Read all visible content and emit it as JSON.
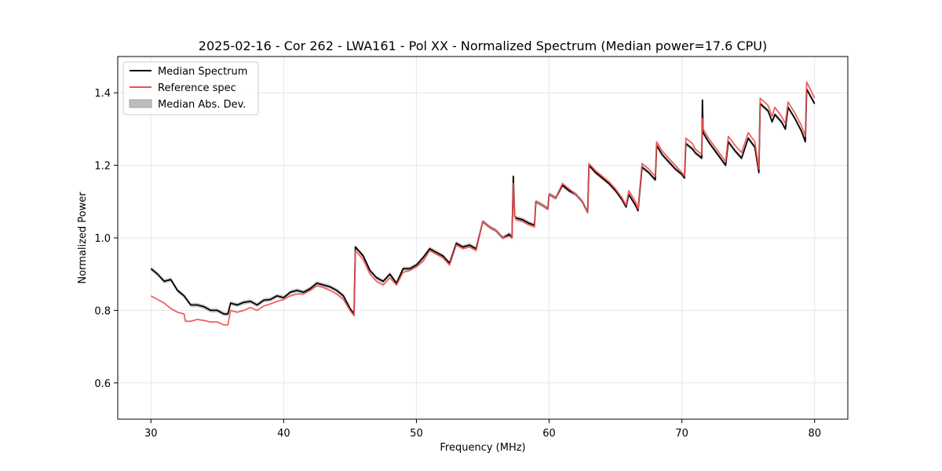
{
  "chart_data": {
    "type": "line",
    "title": "2025-02-16 - Cor 262 - LWA161 - Pol XX - Normalized Spectrum (Median power=17.6 CPU)",
    "xlabel": "Frequency (MHz)",
    "ylabel": "Normalized Power",
    "xlim": [
      27.5,
      82.5
    ],
    "ylim": [
      0.5,
      1.5
    ],
    "xticks": [
      30,
      40,
      50,
      60,
      70,
      80
    ],
    "yticks": [
      0.6,
      0.8,
      1.0,
      1.2,
      1.4
    ],
    "grid": true,
    "legend_position": "top-left",
    "legend": [
      "Median Spectrum",
      "Reference spec",
      "Median Abs. Dev."
    ],
    "colors": {
      "median": "#000000",
      "reference": "#f05050",
      "mad_band": "#bdbdbd"
    },
    "mad_width": 0.006,
    "series": [
      {
        "name": "Median Spectrum",
        "x": [
          30.0,
          30.5,
          31.0,
          31.5,
          32.0,
          32.5,
          33.0,
          33.5,
          34.0,
          34.5,
          35.0,
          35.5,
          35.8,
          36.0,
          36.5,
          37.0,
          37.5,
          38.0,
          38.5,
          39.0,
          39.5,
          40.0,
          40.5,
          41.0,
          41.5,
          42.0,
          42.5,
          43.0,
          43.5,
          44.0,
          44.5,
          45.0,
          45.3,
          45.4,
          46.0,
          46.5,
          47.0,
          47.5,
          48.0,
          48.5,
          49.0,
          49.5,
          50.0,
          50.5,
          51.0,
          51.5,
          52.0,
          52.5,
          53.0,
          53.5,
          54.0,
          54.5,
          55.0,
          55.5,
          56.0,
          56.5,
          57.0,
          57.2,
          57.3,
          57.4,
          57.5,
          58.0,
          58.5,
          58.9,
          59.0,
          59.5,
          59.9,
          60.0,
          60.5,
          61.0,
          61.5,
          62.0,
          62.5,
          62.9,
          63.0,
          63.5,
          64.0,
          64.5,
          65.0,
          65.5,
          65.8,
          66.0,
          66.5,
          66.7,
          67.0,
          67.5,
          68.0,
          68.1,
          68.5,
          69.0,
          69.5,
          70.0,
          70.2,
          70.3,
          70.8,
          71.0,
          71.5,
          71.55,
          71.6,
          72.0,
          72.5,
          73.0,
          73.3,
          73.5,
          74.0,
          74.5,
          75.0,
          75.5,
          75.8,
          75.9,
          76.5,
          76.8,
          77.0,
          77.5,
          77.8,
          78.0,
          78.5,
          79.0,
          79.3,
          79.4,
          80.0
        ],
        "values": [
          0.915,
          0.9,
          0.88,
          0.885,
          0.855,
          0.84,
          0.815,
          0.815,
          0.81,
          0.8,
          0.8,
          0.79,
          0.79,
          0.82,
          0.815,
          0.822,
          0.825,
          0.815,
          0.828,
          0.83,
          0.84,
          0.835,
          0.85,
          0.855,
          0.85,
          0.86,
          0.875,
          0.87,
          0.865,
          0.855,
          0.84,
          0.805,
          0.79,
          0.975,
          0.95,
          0.91,
          0.89,
          0.88,
          0.9,
          0.875,
          0.915,
          0.915,
          0.925,
          0.945,
          0.97,
          0.96,
          0.95,
          0.93,
          0.985,
          0.975,
          0.98,
          0.97,
          1.045,
          1.03,
          1.02,
          1.0,
          1.01,
          1.0,
          1.17,
          1.06,
          1.055,
          1.05,
          1.04,
          1.035,
          1.1,
          1.09,
          1.08,
          1.12,
          1.11,
          1.145,
          1.13,
          1.12,
          1.1,
          1.07,
          1.2,
          1.18,
          1.165,
          1.15,
          1.13,
          1.105,
          1.085,
          1.12,
          1.09,
          1.075,
          1.195,
          1.18,
          1.16,
          1.255,
          1.23,
          1.21,
          1.19,
          1.175,
          1.165,
          1.26,
          1.245,
          1.235,
          1.22,
          1.38,
          1.29,
          1.265,
          1.24,
          1.215,
          1.2,
          1.265,
          1.24,
          1.22,
          1.275,
          1.25,
          1.18,
          1.37,
          1.35,
          1.32,
          1.34,
          1.32,
          1.3,
          1.36,
          1.33,
          1.295,
          1.265,
          1.41,
          1.37
        ]
      },
      {
        "name": "Reference spec",
        "x": [
          30.0,
          30.5,
          31.0,
          31.5,
          32.0,
          32.5,
          32.6,
          33.0,
          33.5,
          34.0,
          34.5,
          35.0,
          35.5,
          35.8,
          36.0,
          36.5,
          37.0,
          37.5,
          38.0,
          38.5,
          39.0,
          39.5,
          40.0,
          40.5,
          41.0,
          41.5,
          42.0,
          42.5,
          43.0,
          43.5,
          44.0,
          44.5,
          45.0,
          45.3,
          45.4,
          46.0,
          46.5,
          47.0,
          47.5,
          48.0,
          48.5,
          49.0,
          49.5,
          50.0,
          50.5,
          51.0,
          51.5,
          52.0,
          52.5,
          53.0,
          53.5,
          54.0,
          54.5,
          55.0,
          55.5,
          56.0,
          56.5,
          57.0,
          57.2,
          57.3,
          57.4,
          57.5,
          58.0,
          58.5,
          58.9,
          59.0,
          59.5,
          59.9,
          60.0,
          60.5,
          61.0,
          61.5,
          62.0,
          62.5,
          62.9,
          63.0,
          63.5,
          64.0,
          64.5,
          65.0,
          65.5,
          65.8,
          66.0,
          66.5,
          66.7,
          67.0,
          67.5,
          68.0,
          68.1,
          68.5,
          69.0,
          69.5,
          70.0,
          70.2,
          70.3,
          70.8,
          71.0,
          71.5,
          71.55,
          71.6,
          72.0,
          72.5,
          73.0,
          73.3,
          73.5,
          74.0,
          74.5,
          75.0,
          75.5,
          75.8,
          75.9,
          76.5,
          76.8,
          77.0,
          77.5,
          77.8,
          78.0,
          78.5,
          79.0,
          79.3,
          79.4,
          80.0
        ],
        "values": [
          0.84,
          0.83,
          0.82,
          0.805,
          0.795,
          0.79,
          0.77,
          0.77,
          0.775,
          0.772,
          0.768,
          0.768,
          0.76,
          0.76,
          0.8,
          0.795,
          0.8,
          0.808,
          0.8,
          0.812,
          0.818,
          0.825,
          0.83,
          0.84,
          0.845,
          0.845,
          0.855,
          0.868,
          0.863,
          0.855,
          0.845,
          0.83,
          0.8,
          0.785,
          0.965,
          0.94,
          0.9,
          0.88,
          0.87,
          0.89,
          0.87,
          0.905,
          0.91,
          0.92,
          0.935,
          0.965,
          0.955,
          0.945,
          0.925,
          0.98,
          0.97,
          0.975,
          0.965,
          1.045,
          1.03,
          1.02,
          1.0,
          1.005,
          1.0,
          1.15,
          1.06,
          1.05,
          1.045,
          1.035,
          1.03,
          1.1,
          1.09,
          1.08,
          1.12,
          1.11,
          1.15,
          1.135,
          1.12,
          1.1,
          1.07,
          1.205,
          1.185,
          1.17,
          1.155,
          1.135,
          1.11,
          1.09,
          1.13,
          1.1,
          1.08,
          1.205,
          1.19,
          1.17,
          1.265,
          1.24,
          1.22,
          1.2,
          1.18,
          1.17,
          1.275,
          1.26,
          1.245,
          1.23,
          1.33,
          1.3,
          1.275,
          1.25,
          1.225,
          1.21,
          1.28,
          1.255,
          1.235,
          1.29,
          1.265,
          1.19,
          1.385,
          1.365,
          1.335,
          1.36,
          1.335,
          1.315,
          1.375,
          1.345,
          1.31,
          1.28,
          1.43,
          1.385
        ]
      }
    ]
  }
}
